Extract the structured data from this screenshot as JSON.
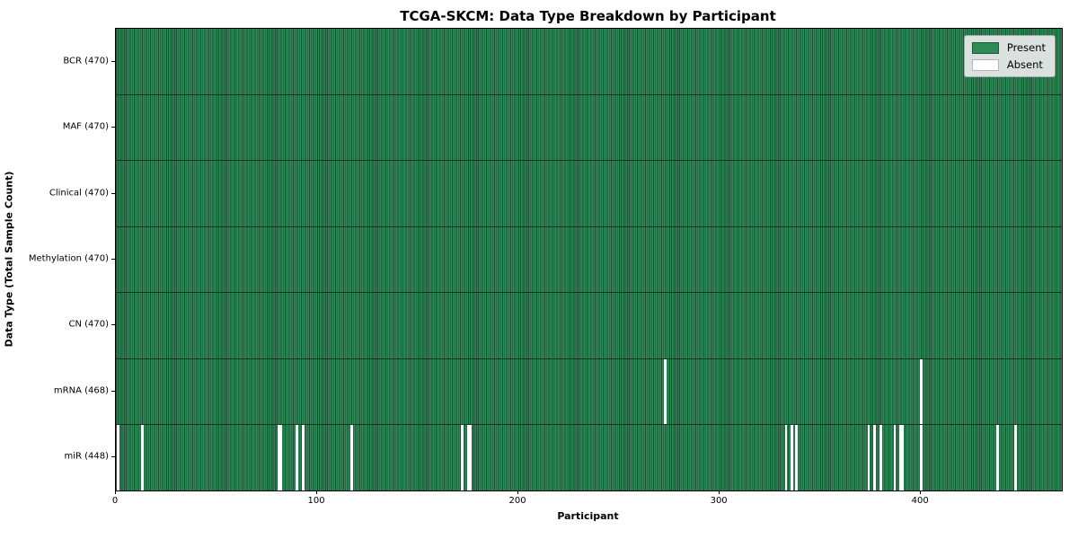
{
  "title": "TCGA-SKCM: Data Type Breakdown by Participant",
  "xlabel": "Participant",
  "ylabel": "Data Type (Total Sample Count)",
  "legend": {
    "present_label": "Present",
    "absent_label": "Absent",
    "position": "upper right"
  },
  "colors": {
    "present": "#2e8b57",
    "absent": "#ffffff",
    "cell_edge": "rgba(0,0,0,0.42)",
    "legend_bg": "#eaeaea"
  },
  "chart_data": {
    "type": "heatmap",
    "title": "TCGA-SKCM: Data Type Breakdown by Participant",
    "xlabel": "Participant",
    "ylabel": "Data Type (Total Sample Count)",
    "x_range": [
      0,
      470
    ],
    "x_ticks": [
      0,
      100,
      200,
      300,
      400
    ],
    "grid": false,
    "legend_entries": [
      "Present",
      "Absent"
    ],
    "value_encoding": {
      "present": 1,
      "absent": 0
    },
    "rows": [
      {
        "label": "BCR (470)",
        "data_type": "BCR",
        "total": 470,
        "absent_participants": []
      },
      {
        "label": "MAF (470)",
        "data_type": "MAF",
        "total": 470,
        "absent_participants": []
      },
      {
        "label": "Clinical (470)",
        "data_type": "Clinical",
        "total": 470,
        "absent_participants": []
      },
      {
        "label": "Methylation (470)",
        "data_type": "Methylation",
        "total": 470,
        "absent_participants": []
      },
      {
        "label": "CN (470)",
        "data_type": "CN",
        "total": 470,
        "absent_participants": []
      },
      {
        "label": "mRNA (468)",
        "data_type": "mRNA",
        "total": 468,
        "absent_participants": [
          273,
          400
        ]
      },
      {
        "label": "miR (448)",
        "data_type": "miR",
        "total": 448,
        "absent_participants": [
          1,
          13,
          81,
          82,
          90,
          93,
          117,
          172,
          175,
          176,
          333,
          336,
          338,
          374,
          377,
          380,
          387,
          390,
          391,
          400,
          438,
          447
        ]
      }
    ]
  }
}
